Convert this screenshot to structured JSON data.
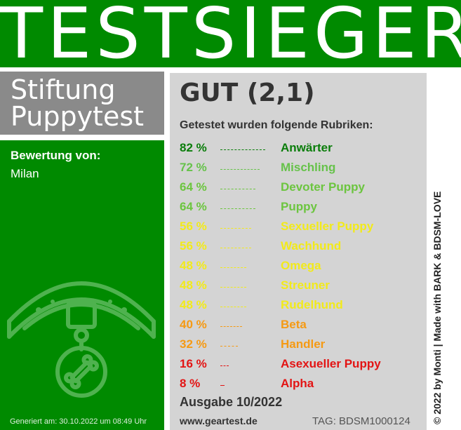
{
  "banner": {
    "title": "TESTSIEGER"
  },
  "brand": {
    "line1": "Stiftung",
    "line2": "Puppytest"
  },
  "rating": {
    "label": "Bewertung von:",
    "name": "Milan"
  },
  "generated": "Generiert am: 30.10.2022 um 08:49 Uhr",
  "grade": "GUT (2,1)",
  "rubriken_title": "Getestet wurden folgende Rubriken:",
  "items": [
    {
      "percent": "82 %",
      "name": "Anwärter",
      "value": 82,
      "color": "#0a7d0a"
    },
    {
      "percent": "72 %",
      "name": "Mischling",
      "value": 72,
      "color": "#66c24a"
    },
    {
      "percent": "64 %",
      "name": "Devoter Puppy",
      "value": 64,
      "color": "#6cc53f"
    },
    {
      "percent": "64 %",
      "name": "Puppy",
      "value": 64,
      "color": "#6cc53f"
    },
    {
      "percent": "56 %",
      "name": "Sexueller Puppy",
      "value": 56,
      "color": "#f2ea1a"
    },
    {
      "percent": "56 %",
      "name": "Wachhund",
      "value": 56,
      "color": "#f2ea1a"
    },
    {
      "percent": "48 %",
      "name": "Omega",
      "value": 48,
      "color": "#f2ea1a"
    },
    {
      "percent": "48 %",
      "name": "Streuner",
      "value": 48,
      "color": "#f2ea1a"
    },
    {
      "percent": "48 %",
      "name": "Rudelhund",
      "value": 48,
      "color": "#f2ea1a"
    },
    {
      "percent": "40 %",
      "name": "Beta",
      "value": 40,
      "color": "#f59a14"
    },
    {
      "percent": "32 %",
      "name": "Handler",
      "value": 32,
      "color": "#f59a14"
    },
    {
      "percent": "16 %",
      "name": "Asexueller Puppy",
      "value": 16,
      "color": "#e31414"
    },
    {
      "percent": "8 %",
      "name": "Alpha",
      "value": 8,
      "color": "#e31414"
    }
  ],
  "ausgabe": "Ausgabe 10/2022",
  "url": "www.geartest.de",
  "tag": "TAG: BDSM1000124",
  "credit": "© 2022 by Monti | Made with BARK & BDSM-LOVE",
  "colors": {
    "green": "#008a00",
    "gray_box": "#8a8a8a",
    "panel": "#d4d4d4"
  },
  "icons": {
    "collar": "dog-collar-icon"
  }
}
